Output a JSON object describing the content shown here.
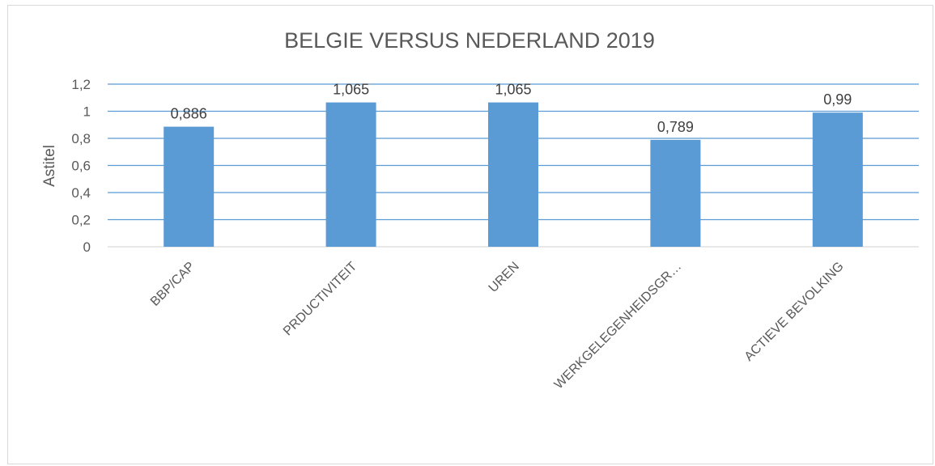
{
  "chart_data": {
    "type": "bar",
    "title": "BELGIE VERSUS NEDERLAND 2019",
    "ylabel": "Astitel",
    "xlabel": "",
    "categories": [
      "BBP/CAP",
      "PRDUCTIVITEIT",
      "UREN",
      "WERKGELEGENHEIDSGR…",
      "ACTIEVE BEVOLKING"
    ],
    "values": [
      0.886,
      1.065,
      1.065,
      0.789,
      0.99
    ],
    "data_labels": [
      "0,886",
      "1,065",
      "1,065",
      "0,789",
      "0,99"
    ],
    "ylim": [
      0,
      1.2
    ],
    "yticks": [
      0,
      0.2,
      0.4,
      0.6,
      0.8,
      1,
      1.2
    ],
    "ytick_labels": [
      "0",
      "0,2",
      "0,4",
      "0,6",
      "0,8",
      "1",
      "1,2"
    ],
    "grid": true,
    "legend": "none",
    "colors": {
      "bar": "#5b9bd5",
      "gridline": "#5b9bd5",
      "axis": "#d9d9d9",
      "text": "#595959"
    }
  }
}
